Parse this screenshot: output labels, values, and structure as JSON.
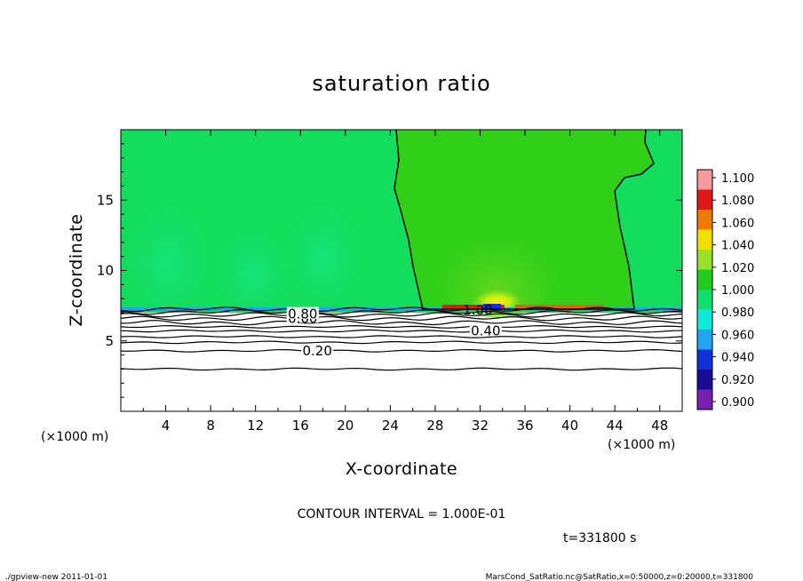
{
  "chart_data": {
    "type": "heatmap",
    "title": "saturation ratio",
    "xlabel": "X-coordinate",
    "ylabel": "Z-coordinate",
    "x_units": "(×1000 m)",
    "y_units": "(×1000 m)",
    "xlim": [
      0,
      50
    ],
    "ylim": [
      0,
      20
    ],
    "x_ticks": [
      4,
      8,
      12,
      16,
      20,
      24,
      28,
      32,
      36,
      40,
      44,
      48
    ],
    "y_ticks": [
      5,
      10,
      15
    ],
    "colorbar": {
      "levels": [
        "0.900",
        "0.920",
        "0.940",
        "0.960",
        "0.980",
        "1.000",
        "1.020",
        "1.040",
        "1.060",
        "1.080",
        "1.100"
      ],
      "colors": [
        "#7a1fb0",
        "#1a0a9a",
        "#1030d8",
        "#1fa6f0",
        "#10e8d8",
        "#13dd6c",
        "#22cc1e",
        "#9ae02a",
        "#f0e000",
        "#f07a00",
        "#e01818",
        "#f59aa0"
      ]
    },
    "contour_labels": [
      {
        "text": "0.20",
        "x": 17.5,
        "z": 4.3
      },
      {
        "text": "0.40",
        "x": 32.5,
        "z": 5.7
      },
      {
        "text": "0.60",
        "x": 16.2,
        "z": 6.6
      },
      {
        "text": "0.80",
        "x": 16.2,
        "z": 6.9
      },
      {
        "text": "1.00",
        "x": 31.8,
        "z": 7.2
      }
    ],
    "contour_interval_text": "CONTOUR INTERVAL = 1.000E-01",
    "time_text": "t=331800 s"
  },
  "footer": {
    "left": "./gpview-new  2011-01-01",
    "right": "MarsCond_SatRatio.nc@SatRatio,x=0:50000,z=0:20000,t=331800"
  }
}
